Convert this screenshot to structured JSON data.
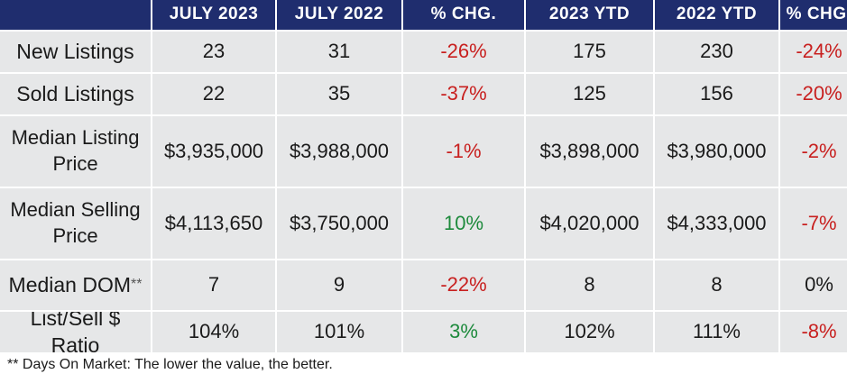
{
  "table": {
    "headers": [
      "JULY 2023",
      "JULY 2022",
      "% CHG.",
      "2023 YTD",
      "2022 YTD",
      "% CHG."
    ],
    "rows": [
      {
        "label": "New Listings",
        "cells": [
          "23",
          "31",
          "-26%",
          "175",
          "230",
          "-24%"
        ]
      },
      {
        "label": "Sold Listings",
        "cells": [
          "22",
          "35",
          "-37%",
          "125",
          "156",
          "-20%"
        ]
      },
      {
        "label": "Median Listing Price",
        "cells": [
          "$3,935,000",
          "$3,988,000",
          "-1%",
          "$3,898,000",
          "$3,980,000",
          "-2%"
        ]
      },
      {
        "label": "Median Selling Price",
        "cells": [
          "$4,113,650",
          "$3,750,000",
          "10%",
          "$4,020,000",
          "$4,333,000",
          "-7%"
        ]
      },
      {
        "label": "Median DOM",
        "label_suffix": "**",
        "cells": [
          "7",
          "9",
          "-22%",
          "8",
          "8",
          "0%"
        ]
      },
      {
        "label": "List/Sell $ Ratio",
        "cells": [
          "104%",
          "101%",
          "3%",
          "102%",
          "111%",
          "-8%"
        ]
      }
    ]
  },
  "footnote": "** Days On Market: The lower the value, the better.",
  "colors": {
    "header_bg": "#1f2d6e",
    "cell_bg": "#e6e7e8",
    "negative": "#c8201f",
    "positive": "#1d8a3c"
  }
}
